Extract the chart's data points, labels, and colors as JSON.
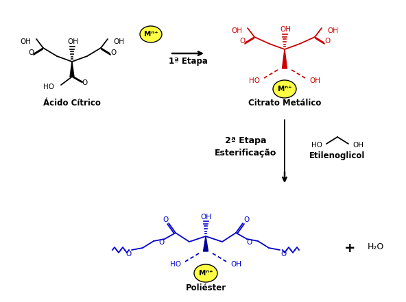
{
  "bg_color": "#ffffff",
  "black": "#000000",
  "red": "#cc0000",
  "blue": "#0000cc",
  "dark_blue": "#000099",
  "yellow_fill": "#ffff44",
  "fig_width": 5.92,
  "fig_height": 4.41,
  "dpi": 100,
  "acido_citrico_label": "Ácido Cítrico",
  "citrato_metalico_label": "Citrato Metálico",
  "poliester_label": "Poliéster",
  "etapa1_label": "1ª Etapa",
  "etapa2_label": "2ª Etapa",
  "esterificacao_label": "Esterificação",
  "etilenoglicol_label": "Etilenoglicol",
  "h2o_label": "H₂O",
  "mn_label": "Mⁿ⁺"
}
